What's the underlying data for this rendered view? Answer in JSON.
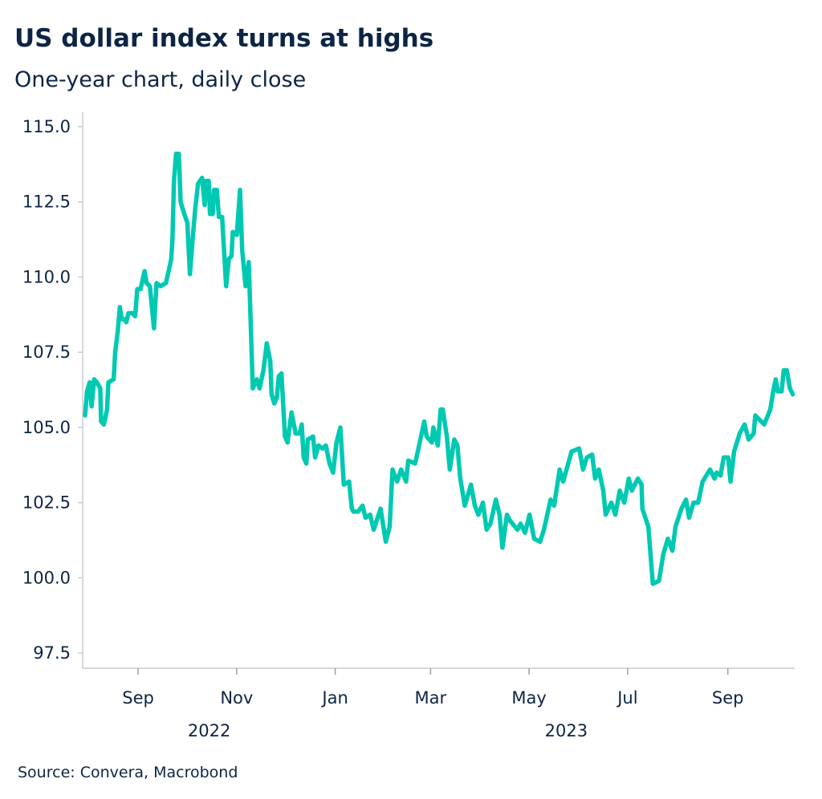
{
  "chart_data": {
    "type": "line",
    "title": "US dollar index turns at highs",
    "subtitle": "One-year chart, daily close",
    "source": "Source: Convera, Macrobond",
    "xlabel": "",
    "ylabel": "",
    "x_unit": "days since 2022-08-01",
    "xlim": [
      -3.3,
      436.4
    ],
    "ylim": [
      97.5,
      115.0
    ],
    "y_ticks": [
      97.5,
      100.0,
      102.5,
      105.0,
      107.5,
      110.0,
      112.5,
      115.0
    ],
    "y_tick_labels": [
      "97.5",
      "100.0",
      "102.5",
      "105.0",
      "107.5",
      "110.0",
      "112.5",
      "115.0"
    ],
    "x_ticks": [
      {
        "x": 31,
        "label": "Sep"
      },
      {
        "x": 92,
        "label": "Nov"
      },
      {
        "x": 153,
        "label": "Jan"
      },
      {
        "x": 212,
        "label": "Mar"
      },
      {
        "x": 273,
        "label": "May"
      },
      {
        "x": 334,
        "label": "Jul"
      },
      {
        "x": 396,
        "label": "Sep"
      }
    ],
    "year_labels": [
      {
        "x": 75,
        "label": "2022"
      },
      {
        "x": 296,
        "label": "2023"
      }
    ],
    "grid": false,
    "legend": "none",
    "line_color": "#00c9b2",
    "series": [
      {
        "name": "US dollar index",
        "points": [
          [
            -1.8,
            105.4
          ],
          [
            -0.6,
            106.2
          ],
          [
            1.0,
            106.5
          ],
          [
            2.2,
            105.7
          ],
          [
            3.8,
            106.6
          ],
          [
            5.5,
            106.5
          ],
          [
            7.6,
            106.3
          ],
          [
            8.1,
            105.2
          ],
          [
            9.8,
            105.1
          ],
          [
            11.8,
            105.6
          ],
          [
            12.6,
            106.5
          ],
          [
            15.9,
            106.6
          ],
          [
            16.8,
            107.5
          ],
          [
            18.4,
            108.2
          ],
          [
            19.7,
            109.0
          ],
          [
            20.9,
            108.6
          ],
          [
            22.5,
            108.6
          ],
          [
            23.7,
            108.5
          ],
          [
            25.0,
            108.8
          ],
          [
            27.5,
            108.8
          ],
          [
            29.2,
            108.7
          ],
          [
            30.5,
            109.6
          ],
          [
            32.5,
            109.6
          ],
          [
            35.0,
            110.2
          ],
          [
            36.3,
            109.8
          ],
          [
            38.3,
            109.7
          ],
          [
            40.8,
            108.3
          ],
          [
            42.4,
            109.8
          ],
          [
            44.9,
            109.7
          ],
          [
            48.2,
            109.8
          ],
          [
            49.9,
            110.2
          ],
          [
            51.5,
            110.6
          ],
          [
            52.3,
            111.3
          ],
          [
            53.2,
            113.2
          ],
          [
            54.5,
            114.1
          ],
          [
            56.2,
            114.1
          ],
          [
            57.3,
            112.5
          ],
          [
            59.0,
            112.2
          ],
          [
            61.5,
            111.8
          ],
          [
            63.1,
            110.1
          ],
          [
            64.8,
            111.3
          ],
          [
            66.4,
            112.3
          ],
          [
            68.1,
            113.1
          ],
          [
            70.6,
            113.3
          ],
          [
            72.2,
            112.4
          ],
          [
            73.0,
            113.2
          ],
          [
            74.7,
            113.2
          ],
          [
            75.5,
            112.1
          ],
          [
            77.2,
            112.1
          ],
          [
            78.0,
            112.9
          ],
          [
            79.7,
            112.9
          ],
          [
            81.0,
            112.0
          ],
          [
            83.0,
            112.0
          ],
          [
            85.5,
            109.7
          ],
          [
            87.1,
            110.6
          ],
          [
            88.8,
            110.7
          ],
          [
            89.6,
            111.5
          ],
          [
            92.1,
            111.4
          ],
          [
            94.1,
            112.9
          ],
          [
            95.4,
            110.9
          ],
          [
            97.5,
            109.7
          ],
          [
            99.5,
            110.5
          ],
          [
            102.0,
            106.3
          ],
          [
            104.5,
            106.6
          ],
          [
            106.2,
            106.3
          ],
          [
            108.6,
            106.9
          ],
          [
            110.6,
            107.8
          ],
          [
            112.8,
            107.2
          ],
          [
            113.6,
            106.1
          ],
          [
            115.3,
            105.8
          ],
          [
            116.9,
            106.0
          ],
          [
            118.1,
            106.7
          ],
          [
            119.7,
            106.8
          ],
          [
            121.9,
            104.7
          ],
          [
            123.5,
            104.5
          ],
          [
            126.0,
            105.5
          ],
          [
            128.5,
            104.8
          ],
          [
            131.0,
            104.8
          ],
          [
            132.3,
            105.1
          ],
          [
            133.5,
            104.0
          ],
          [
            135.1,
            103.8
          ],
          [
            136.0,
            104.6
          ],
          [
            139.3,
            104.7
          ],
          [
            140.6,
            104.0
          ],
          [
            142.6,
            104.4
          ],
          [
            145.1,
            104.3
          ],
          [
            147.2,
            104.4
          ],
          [
            149.5,
            103.8
          ],
          [
            151.7,
            103.5
          ],
          [
            153.8,
            104.5
          ],
          [
            156.2,
            105.0
          ],
          [
            158.3,
            103.1
          ],
          [
            161.6,
            103.2
          ],
          [
            163.3,
            102.3
          ],
          [
            164.3,
            102.2
          ],
          [
            167.1,
            102.2
          ],
          [
            169.9,
            102.4
          ],
          [
            171.8,
            102.0
          ],
          [
            174.6,
            102.1
          ],
          [
            176.8,
            101.6
          ],
          [
            181.1,
            102.3
          ],
          [
            184.3,
            101.2
          ],
          [
            186.7,
            101.7
          ],
          [
            188.5,
            103.6
          ],
          [
            191.3,
            103.2
          ],
          [
            193.8,
            103.6
          ],
          [
            196.9,
            103.2
          ],
          [
            198.2,
            103.9
          ],
          [
            202.5,
            103.8
          ],
          [
            205.3,
            104.5
          ],
          [
            208.1,
            105.2
          ],
          [
            209.6,
            104.7
          ],
          [
            212.8,
            104.5
          ],
          [
            213.7,
            105.0
          ],
          [
            216.5,
            104.4
          ],
          [
            218.3,
            105.6
          ],
          [
            219.6,
            105.6
          ],
          [
            222.1,
            104.7
          ],
          [
            223.9,
            103.6
          ],
          [
            226.7,
            104.6
          ],
          [
            228.6,
            104.4
          ],
          [
            230.4,
            103.3
          ],
          [
            233.2,
            102.4
          ],
          [
            237.0,
            103.1
          ],
          [
            239.4,
            102.4
          ],
          [
            241.6,
            102.1
          ],
          [
            244.4,
            102.5
          ],
          [
            246.7,
            101.6
          ],
          [
            249.1,
            101.8
          ],
          [
            252.4,
            102.6
          ],
          [
            254.7,
            102.1
          ],
          [
            256.5,
            101.0
          ],
          [
            259.3,
            102.1
          ],
          [
            261.2,
            101.9
          ],
          [
            265.8,
            101.6
          ],
          [
            267.7,
            101.8
          ],
          [
            270.5,
            101.5
          ],
          [
            273.3,
            102.1
          ],
          [
            276.1,
            101.3
          ],
          [
            279.8,
            101.2
          ],
          [
            282.2,
            101.6
          ],
          [
            286.3,
            102.6
          ],
          [
            288.5,
            102.4
          ],
          [
            291.9,
            103.6
          ],
          [
            294.1,
            103.2
          ],
          [
            299.3,
            104.2
          ],
          [
            304.0,
            104.3
          ],
          [
            306.4,
            103.6
          ],
          [
            308.7,
            104.0
          ],
          [
            312.0,
            104.1
          ],
          [
            313.9,
            103.3
          ],
          [
            316.1,
            103.6
          ],
          [
            318.9,
            102.9
          ],
          [
            320.4,
            102.1
          ],
          [
            323.9,
            102.5
          ],
          [
            326.4,
            102.1
          ],
          [
            329.1,
            102.9
          ],
          [
            331.9,
            102.5
          ],
          [
            334.7,
            103.3
          ],
          [
            336.6,
            102.9
          ],
          [
            340.3,
            103.3
          ],
          [
            342.6,
            103.1
          ],
          [
            343.1,
            102.3
          ],
          [
            346.8,
            101.7
          ],
          [
            348.7,
            100.4
          ],
          [
            349.6,
            99.8
          ],
          [
            353.4,
            99.9
          ],
          [
            356.1,
            100.8
          ],
          [
            358.9,
            101.3
          ],
          [
            361.7,
            100.9
          ],
          [
            363.6,
            101.7
          ],
          [
            367.3,
            102.3
          ],
          [
            370.1,
            102.6
          ],
          [
            372.0,
            102.0
          ],
          [
            374.8,
            102.5
          ],
          [
            377.6,
            102.5
          ],
          [
            380.4,
            103.2
          ],
          [
            385.0,
            103.6
          ],
          [
            387.8,
            103.3
          ],
          [
            389.1,
            103.5
          ],
          [
            391.5,
            103.4
          ],
          [
            393.4,
            104.0
          ],
          [
            396.2,
            104.0
          ],
          [
            397.7,
            103.2
          ],
          [
            399.9,
            104.2
          ],
          [
            403.3,
            104.8
          ],
          [
            406.4,
            105.1
          ],
          [
            408.9,
            104.6
          ],
          [
            412.0,
            104.8
          ],
          [
            413.0,
            105.4
          ],
          [
            418.5,
            105.1
          ],
          [
            422.3,
            105.6
          ],
          [
            424.1,
            106.2
          ],
          [
            425.6,
            106.6
          ],
          [
            426.9,
            106.2
          ],
          [
            429.3,
            106.2
          ],
          [
            430.6,
            106.9
          ],
          [
            432.5,
            106.9
          ],
          [
            434.4,
            106.3
          ],
          [
            436.2,
            106.1
          ]
        ]
      }
    ]
  }
}
